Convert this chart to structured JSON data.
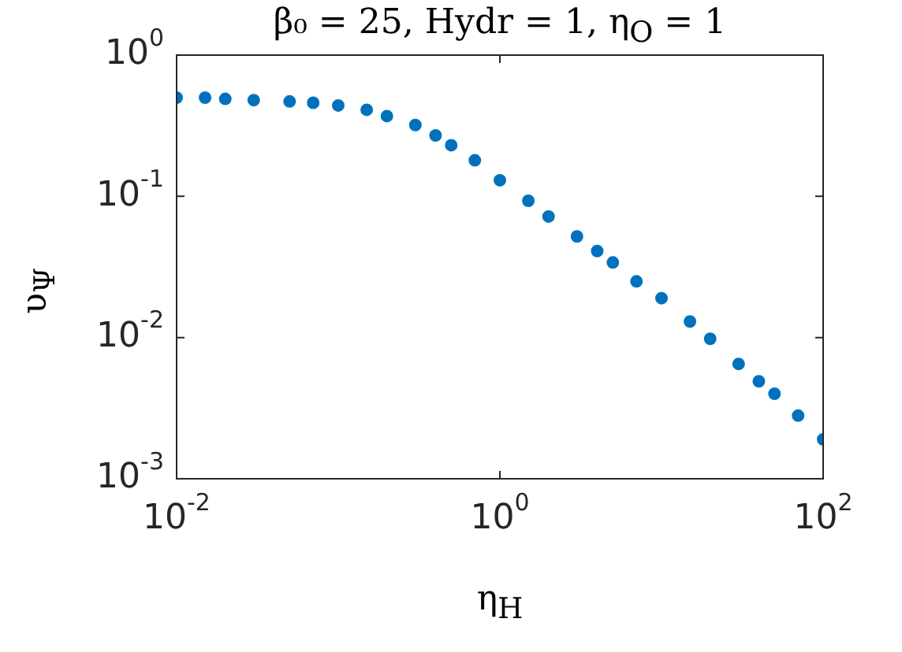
{
  "chart_data": {
    "type": "scatter",
    "title": "β₀ = 25, Hydr = 1, η$_{O}$ = 1",
    "xlabel": "η$_{H}$",
    "ylabel": "υ$_{Ψ}$",
    "log": "xy",
    "marker": "circle",
    "grid": false,
    "legend": false,
    "xlim": [
      0.01,
      100
    ],
    "xticks": [
      {
        "value": 0.01,
        "label": "10$^{-2}$"
      },
      {
        "value": 1,
        "label": "10$^{0}$"
      },
      {
        "value": 100,
        "label": "10$^{2}$"
      }
    ],
    "ylim": [
      0.001,
      1
    ],
    "yticks": [
      {
        "value": 0.001,
        "label": "10$^{-3}$"
      },
      {
        "value": 0.01,
        "label": "10$^{-2}$"
      },
      {
        "value": 0.1,
        "label": "10$^{-1}$"
      },
      {
        "value": 1,
        "label": "10$^{0}$"
      }
    ],
    "series": [
      {
        "color": "#0072bd",
        "x": [
          0.01,
          0.015,
          0.02,
          0.03,
          0.05,
          0.07,
          0.1,
          0.15,
          0.2,
          0.3,
          0.4,
          0.5,
          0.7,
          1,
          1.5,
          2,
          3,
          4,
          5,
          7,
          10,
          15,
          20,
          30,
          40,
          50,
          70,
          100
        ],
        "values": [
          0.5,
          0.5,
          0.49,
          0.48,
          0.47,
          0.46,
          0.44,
          0.41,
          0.37,
          0.32,
          0.27,
          0.23,
          0.18,
          0.13,
          0.093,
          0.072,
          0.052,
          0.041,
          0.034,
          0.025,
          0.019,
          0.013,
          0.0098,
          0.0065,
          0.0049,
          0.004,
          0.0028,
          0.0019
        ]
      }
    ]
  }
}
